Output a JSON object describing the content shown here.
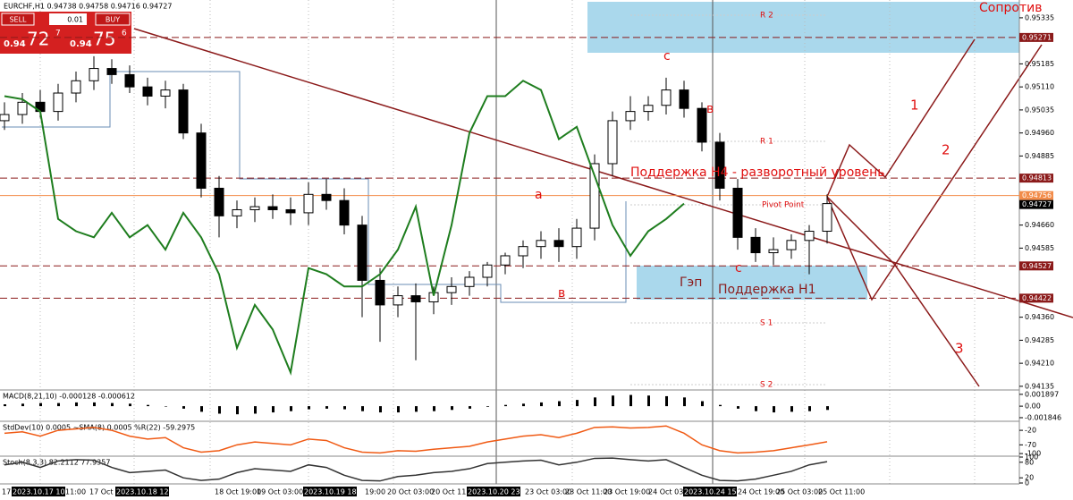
{
  "toolbar": {
    "symbol": "EURCHF,H1 0.94738 0.94758 0.94716 0.94727",
    "sell": "SELL",
    "lot": "0.01",
    "buy": "BUY",
    "sell_price": {
      "prefix": "0.94",
      "big": "72",
      "sup": "7"
    },
    "buy_price": {
      "prefix": "0.94",
      "big": "75",
      "sup": "6"
    }
  },
  "time_axis": [
    "17",
    "2023.10.17 10:00",
    "11:00",
    "17 Oct 19:00",
    "2023.10.18 12:25",
    "18 Oct 19:00",
    "19 Oct 03:00",
    "2023.10.19 18:10",
    "19:00",
    "20 Oct 03:00",
    "20 Oct 11:00",
    "2023.10.20 23:00",
    "23 Oct 03:00",
    "23 Oct 11:00",
    "23 Oct 19:00",
    "24 Oct 03:00",
    "2023.10.24 15:30",
    "24 Oct 19:00",
    "25 Oct 03:00",
    "25 Oct 11:00"
  ],
  "chart_data": [
    {
      "type": "candlestick",
      "ylim": [
        0.94123,
        0.95393
      ],
      "yticks": [
        0.95335,
        0.95185,
        {
          "value": 0.9511,
          "label": "0.95110"
        },
        0.95035,
        {
          "value": 0.9496,
          "label": "0.94960"
        },
        0.94885,
        {
          "value": 0.9466,
          "label": "0.94660"
        },
        0.94585,
        {
          "value": 0.9436,
          "label": "0.94360"
        },
        0.94285,
        {
          "value": 0.9421,
          "label": "0.94210"
        },
        0.94135
      ],
      "open": [
        0.95,
        0.9502,
        0.9506,
        0.9503,
        0.9509,
        0.9513,
        0.9517,
        0.9515,
        0.9511,
        0.9508,
        0.951,
        0.9496,
        0.9478,
        0.9469,
        0.9471,
        0.9472,
        0.9471,
        0.947,
        0.9476,
        0.9474,
        0.9466,
        0.9448,
        0.944,
        0.9443,
        0.9441,
        0.9444,
        0.9446,
        0.9449,
        0.9453,
        0.9456,
        0.9459,
        0.9461,
        0.9459,
        0.9465,
        0.9486,
        0.95,
        0.9503,
        0.9505,
        0.951,
        0.9504,
        0.9493,
        0.9478,
        0.9462,
        0.9457,
        0.9458,
        0.9461,
        0.9464
      ],
      "high": [
        0.9506,
        0.9509,
        0.951,
        0.9512,
        0.9516,
        0.9521,
        0.952,
        0.9518,
        0.9514,
        0.9513,
        0.9512,
        0.9499,
        0.9482,
        0.9474,
        0.9475,
        0.9476,
        0.9475,
        0.948,
        0.9481,
        0.9478,
        0.9469,
        0.9452,
        0.9446,
        0.9447,
        0.9446,
        0.9449,
        0.9451,
        0.9454,
        0.9457,
        0.9461,
        0.9464,
        0.9465,
        0.9468,
        0.9489,
        0.9503,
        0.9508,
        0.9508,
        0.9514,
        0.9513,
        0.9506,
        0.9496,
        0.9481,
        0.9465,
        0.9462,
        0.9463,
        0.9466,
        0.9476
      ],
      "low": [
        0.9497,
        0.9499,
        0.9501,
        0.95,
        0.9506,
        0.951,
        0.9512,
        0.9509,
        0.9505,
        0.9504,
        0.9494,
        0.9475,
        0.9462,
        0.9465,
        0.9467,
        0.9468,
        0.9466,
        0.9466,
        0.9471,
        0.9463,
        0.9436,
        0.9428,
        0.9436,
        0.9422,
        0.9437,
        0.944,
        0.9443,
        0.9446,
        0.945,
        0.9452,
        0.9455,
        0.9454,
        0.9455,
        0.9461,
        0.9482,
        0.9497,
        0.95,
        0.9502,
        0.9501,
        0.949,
        0.9474,
        0.9458,
        0.9454,
        0.9453,
        0.9455,
        0.945,
        0.946
      ],
      "close": [
        0.9502,
        0.9506,
        0.9503,
        0.9509,
        0.9513,
        0.9517,
        0.9515,
        0.9511,
        0.9508,
        0.951,
        0.9496,
        0.9478,
        0.9469,
        0.9471,
        0.9472,
        0.9471,
        0.947,
        0.9476,
        0.9474,
        0.9466,
        0.9448,
        0.944,
        0.9443,
        0.9441,
        0.9444,
        0.9446,
        0.9449,
        0.9453,
        0.9456,
        0.9459,
        0.9461,
        0.9459,
        0.9465,
        0.9486,
        0.95,
        0.9503,
        0.9505,
        0.951,
        0.9504,
        0.9493,
        0.9478,
        0.9462,
        0.9457,
        0.9458,
        0.9461,
        0.9464,
        0.9473
      ],
      "overlay": {
        "color": "#1e7d1e",
        "values": [
          0.9508,
          0.9507,
          0.9503,
          0.9468,
          0.9464,
          0.9462,
          0.947,
          0.9462,
          0.9466,
          0.9458,
          0.947,
          0.9462,
          0.945,
          0.9426,
          0.944,
          0.9432,
          0.9418,
          0.9452,
          0.945,
          0.9446,
          0.9446,
          0.945,
          0.9458,
          0.9472,
          0.9443,
          0.9466,
          0.9496,
          0.9508,
          0.9508,
          0.9513,
          0.951,
          0.9494,
          0.9498,
          0.9482,
          0.9466,
          0.9456,
          0.9464,
          0.9468,
          0.9473,
          null,
          null,
          null,
          null,
          null,
          null,
          null,
          null
        ]
      },
      "levels": [
        {
          "value": 0.95271,
          "color": "#8b1a1a"
        },
        {
          "value": 0.94813,
          "color": "#8b1a1a"
        },
        {
          "value": 0.94756,
          "color": "#f28c4a"
        },
        {
          "value": 0.94727,
          "color": "#000000"
        },
        {
          "value": 0.94527,
          "color": "#8b1a1a"
        },
        {
          "value": 0.94422,
          "color": "#8b1a1a"
        }
      ],
      "annotations": [
        "R 2",
        "R 1",
        "Pivot Point",
        "S 1",
        "S 2",
        "Поддержка Н4 - разворотный уровень",
        "Гэп",
        "Поддержка Н1",
        "Сопротив",
        "а",
        "в",
        "с",
        "в",
        "с",
        "1",
        "2",
        "3"
      ]
    },
    {
      "type": "histogram",
      "title": "MACD(8,21,10) -0.000128 -0.000612",
      "ylim": [
        -0.002423,
        0.002451
      ],
      "yticks": [
        0.001897,
        {
          "value": 0,
          "label": "0.00"
        },
        -0.001846
      ],
      "color": "#000000",
      "values": [
        0.0003,
        0.0004,
        0.0005,
        0.0005,
        0.0006,
        0.0006,
        0.0005,
        0.0004,
        0.0002,
        0.0,
        -0.0004,
        -0.0009,
        -0.0012,
        -0.0013,
        -0.0012,
        -0.001,
        -0.0008,
        -0.0005,
        -0.0004,
        -0.0005,
        -0.0008,
        -0.001,
        -0.001,
        -0.0009,
        -0.0008,
        -0.0006,
        -0.0004,
        -0.0001,
        0.0002,
        0.0004,
        0.0006,
        0.0008,
        0.001,
        0.0014,
        0.0017,
        0.0018,
        0.0017,
        0.0016,
        0.0014,
        0.0008,
        0.0002,
        -0.0004,
        -0.0008,
        -0.001,
        -0.0009,
        -0.0008,
        -0.0006
      ]
    },
    {
      "type": "line",
      "title": "StdDev(10) 0.0005 ~SMA(8) 0.0005 %R(22) -59.2975",
      "ylim": [
        -109,
        8
      ],
      "yticks": [
        -20,
        -70,
        -100
      ],
      "color": "#f05a14",
      "values": [
        -30,
        -25,
        -40,
        -20,
        -15,
        -10,
        -20,
        -40,
        -50,
        -45,
        -80,
        -95,
        -90,
        -70,
        -60,
        -65,
        -70,
        -50,
        -55,
        -80,
        -95,
        -98,
        -90,
        -92,
        -85,
        -80,
        -75,
        -60,
        -50,
        -40,
        -35,
        -45,
        -30,
        -10,
        -8,
        -12,
        -10,
        -5,
        -30,
        -70,
        -90,
        -98,
        -95,
        -90,
        -80,
        -70,
        -59.3
      ]
    },
    {
      "type": "line",
      "title": "Stoch(8,3,3) 82.2112 77.9357",
      "ylim": [
        0,
        100
      ],
      "yticks": [
        100,
        80,
        20,
        0
      ],
      "color": "#333333",
      "values": [
        70,
        80,
        60,
        85,
        90,
        88,
        60,
        40,
        45,
        50,
        20,
        10,
        15,
        40,
        55,
        50,
        45,
        70,
        60,
        30,
        10,
        8,
        25,
        30,
        40,
        45,
        55,
        75,
        80,
        85,
        88,
        70,
        80,
        95,
        96,
        90,
        85,
        90,
        60,
        30,
        10,
        8,
        15,
        30,
        45,
        70,
        82.2
      ]
    }
  ]
}
